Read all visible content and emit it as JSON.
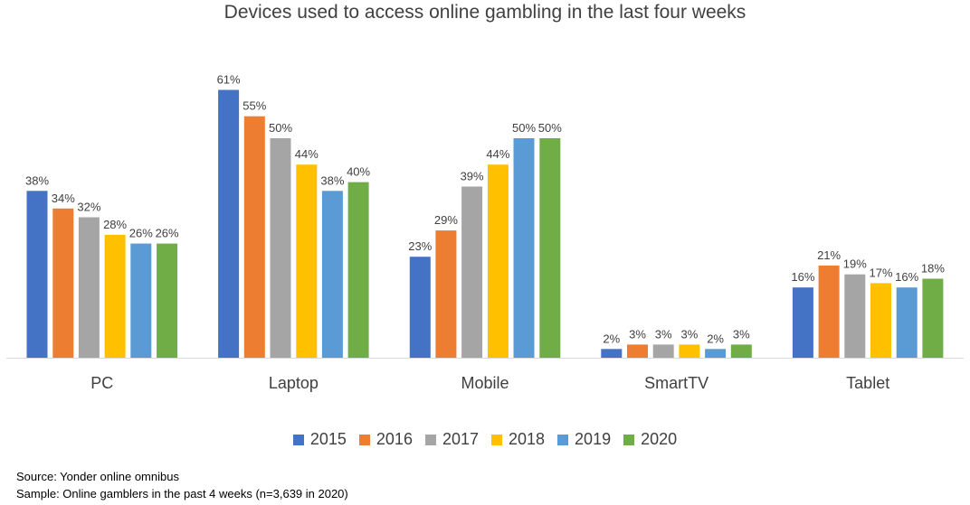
{
  "chart_data": {
    "type": "bar",
    "title": "Devices used to access online gambling in the last four weeks",
    "categories": [
      "PC",
      "Laptop",
      "Mobile",
      "SmartTV",
      "Tablet"
    ],
    "series": [
      {
        "name": "2015",
        "color": "#4472C4",
        "values": [
          38,
          61,
          23,
          2,
          16
        ]
      },
      {
        "name": "2016",
        "color": "#ED7D31",
        "values": [
          34,
          55,
          29,
          3,
          21
        ]
      },
      {
        "name": "2017",
        "color": "#A5A5A5",
        "values": [
          32,
          50,
          39,
          3,
          19
        ]
      },
      {
        "name": "2018",
        "color": "#FFC000",
        "values": [
          28,
          44,
          44,
          3,
          17
        ]
      },
      {
        "name": "2019",
        "color": "#5B9BD5",
        "values": [
          26,
          38,
          50,
          2,
          16
        ]
      },
      {
        "name": "2020",
        "color": "#70AD47",
        "values": [
          26,
          40,
          50,
          3,
          18
        ]
      }
    ],
    "value_suffix": "%",
    "ylim": [
      0,
      65
    ],
    "legend_position": "bottom",
    "grid": false
  },
  "notes": {
    "source": "Source: Yonder online omnibus",
    "sample": "Sample: Online gamblers in the past 4 weeks (n=3,639 in 2020)"
  }
}
